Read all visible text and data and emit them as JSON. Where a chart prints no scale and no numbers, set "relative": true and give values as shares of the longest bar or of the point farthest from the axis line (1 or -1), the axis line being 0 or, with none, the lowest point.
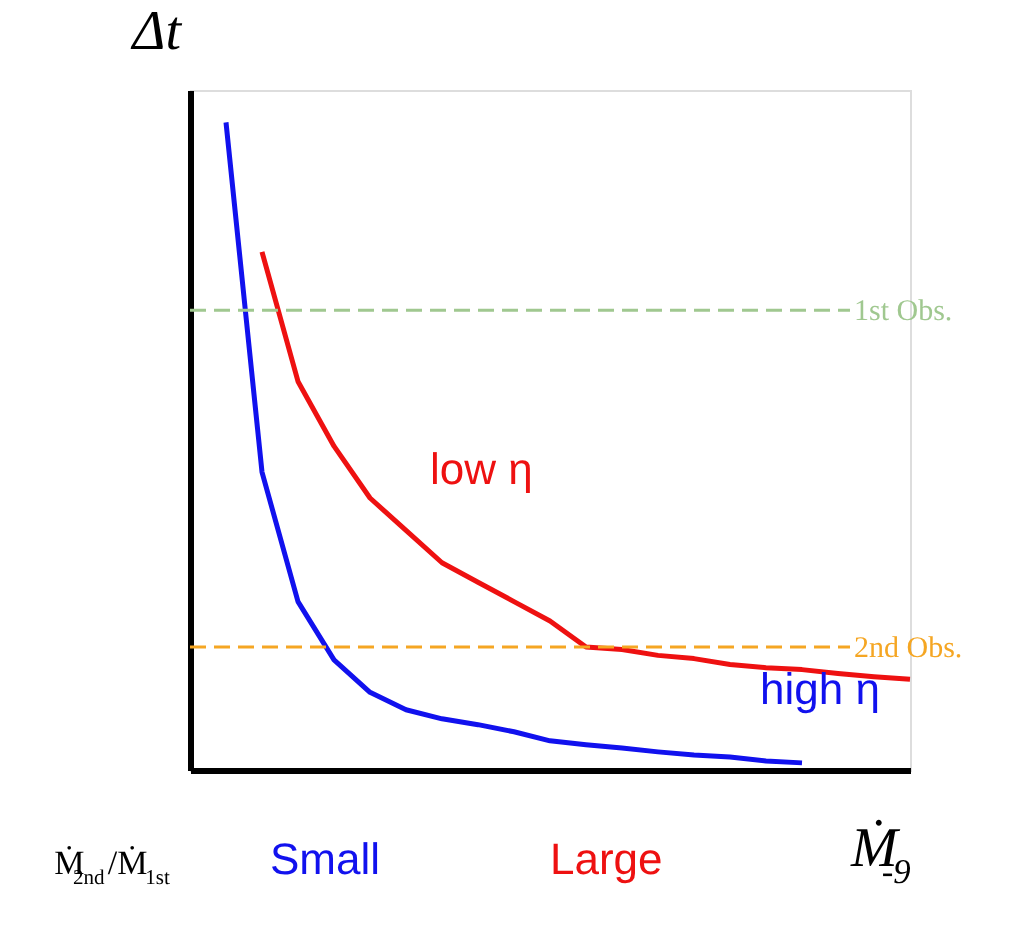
{
  "chart_data": {
    "type": "line",
    "relative": true,
    "xlabel": "Ṁ$_{-9}$",
    "ylabel": "Δt",
    "categories": [
      null,
      null,
      null,
      null,
      null,
      null,
      null,
      null,
      null,
      null,
      null,
      null,
      null,
      null,
      null,
      null,
      null,
      null,
      null,
      null,
      null
    ],
    "series": [
      {
        "name": "low η",
        "color": "#ee1111",
        "values": [
          null,
          null,
          0.8,
          0.6,
          0.5,
          0.42,
          0.37,
          0.32,
          0.29,
          0.26,
          0.23,
          0.19,
          0.186,
          0.177,
          0.172,
          0.163,
          0.158,
          0.155,
          0.149,
          0.144,
          0.14
        ]
      },
      {
        "name": "high η",
        "color": "#1111ee",
        "values": [
          null,
          1,
          0.46,
          0.26,
          0.17,
          0.12,
          0.093,
          0.079,
          0.07,
          0.059,
          0.045,
          0.039,
          0.034,
          0.028,
          0.023,
          0.02,
          0.014,
          0.011,
          null,
          null,
          null
        ]
      }
    ],
    "ref_lines": [
      {
        "axis": "y",
        "value": 0.71,
        "label": "1st Obs.",
        "color": "#a0c890",
        "line_style": "dashed"
      },
      {
        "axis": "y",
        "value": 0.19,
        "label": "2nd Obs.",
        "color": "#f5a623",
        "line_style": "dashed"
      }
    ],
    "annotations": [
      "Ṁ$_{2nd}$/Ṁ$_{1st}$",
      "Small",
      "Large"
    ],
    "legend": false,
    "marker": "none",
    "line_style": "solid",
    "grid": false
  }
}
